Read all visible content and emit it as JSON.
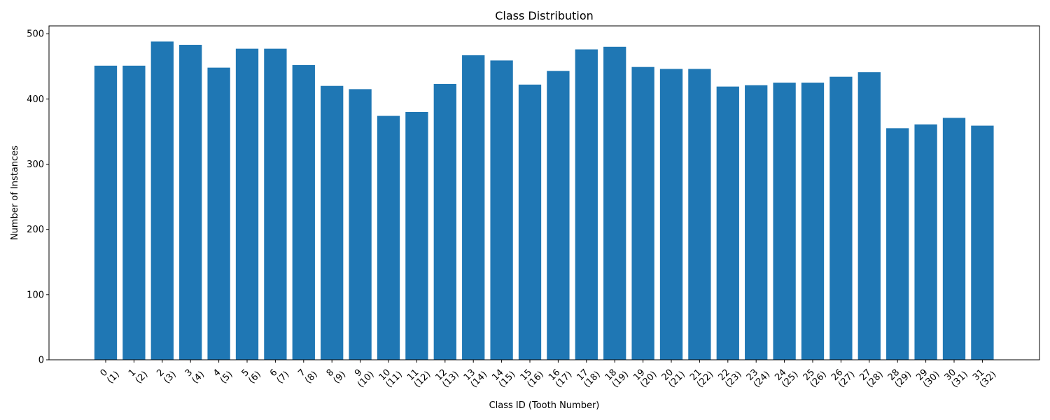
{
  "chart_data": {
    "type": "bar",
    "title": "Class Distribution",
    "xlabel": "Class ID (Tooth Number)",
    "ylabel": "Number of Instances",
    "ylim": [
      0,
      512
    ],
    "yticks": [
      0,
      100,
      200,
      300,
      400,
      500
    ],
    "bar_color": "#1f77b4",
    "categories": [
      [
        "0",
        "(1)"
      ],
      [
        "1",
        "(2)"
      ],
      [
        "2",
        "(3)"
      ],
      [
        "3",
        "(4)"
      ],
      [
        "4",
        "(5)"
      ],
      [
        "5",
        "(6)"
      ],
      [
        "6",
        "(7)"
      ],
      [
        "7",
        "(8)"
      ],
      [
        "8",
        "(9)"
      ],
      [
        "9",
        "(10)"
      ],
      [
        "10",
        "(11)"
      ],
      [
        "11",
        "(12)"
      ],
      [
        "12",
        "(13)"
      ],
      [
        "13",
        "(14)"
      ],
      [
        "14",
        "(15)"
      ],
      [
        "15",
        "(16)"
      ],
      [
        "16",
        "(17)"
      ],
      [
        "17",
        "(18)"
      ],
      [
        "18",
        "(19)"
      ],
      [
        "19",
        "(20)"
      ],
      [
        "20",
        "(21)"
      ],
      [
        "21",
        "(22)"
      ],
      [
        "22",
        "(23)"
      ],
      [
        "23",
        "(24)"
      ],
      [
        "24",
        "(25)"
      ],
      [
        "25",
        "(26)"
      ],
      [
        "26",
        "(27)"
      ],
      [
        "27",
        "(28)"
      ],
      [
        "28",
        "(29)"
      ],
      [
        "29",
        "(30)"
      ],
      [
        "30",
        "(31)"
      ],
      [
        "31",
        "(32)"
      ]
    ],
    "values": [
      451,
      451,
      488,
      483,
      448,
      477,
      477,
      452,
      420,
      415,
      374,
      380,
      423,
      467,
      459,
      422,
      443,
      476,
      480,
      449,
      446,
      446,
      419,
      421,
      425,
      425,
      434,
      441,
      355,
      361,
      371,
      359
    ]
  }
}
